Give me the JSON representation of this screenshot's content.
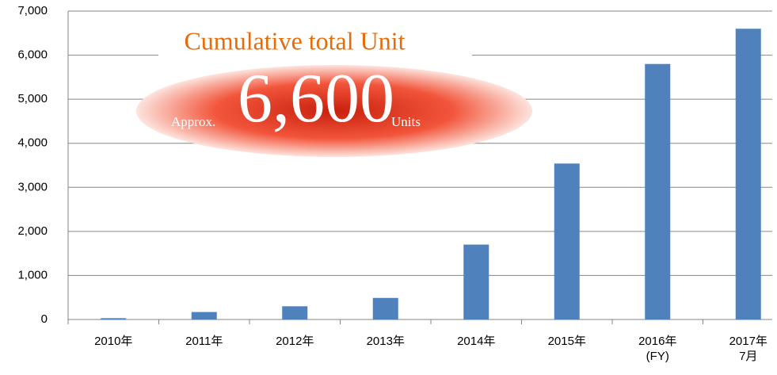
{
  "chart_data": {
    "type": "bar",
    "categories": [
      "2010年",
      "2011年",
      "2012年",
      "2013年",
      "2014年",
      "2015年",
      "2016年\n(FY)",
      "2017年\n7月"
    ],
    "values": [
      30,
      170,
      300,
      490,
      1700,
      3540,
      5800,
      6600
    ],
    "color": "#4f81bd",
    "ylim": [
      0,
      7000
    ],
    "yticks": [
      0,
      {
        "value": 1000,
        "label": "1,000"
      },
      {
        "value": 2000,
        "label": "2,000"
      },
      {
        "value": 3000,
        "label": "3,000"
      },
      {
        "value": 4000,
        "label": "4,000"
      },
      {
        "value": 5000,
        "label": "5,000"
      },
      {
        "value": 6000,
        "label": "6,000"
      },
      {
        "value": 7000,
        "label": "7,000"
      }
    ],
    "grid": true,
    "annotation": {
      "title": "Cumulative total Unit",
      "prefix": "Approx.",
      "value_text": "6,600",
      "suffix": "Units"
    }
  }
}
